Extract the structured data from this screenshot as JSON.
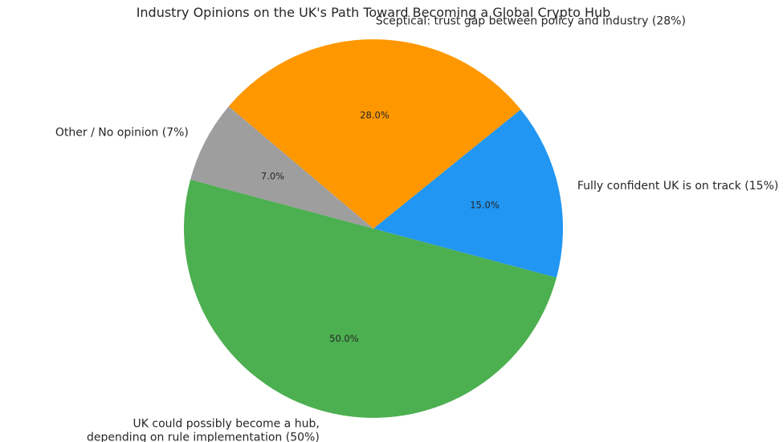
{
  "chart_data": {
    "type": "pie",
    "title": "Industry Opinions on the UK's Path Toward Becoming a Global Crypto Hub",
    "start_angle_deg": -15,
    "direction": "counterclockwise",
    "slices": [
      {
        "label": "Fully confident UK is on track (15%)",
        "value": 15,
        "pct_label": "15.0%",
        "color": "#2196F3",
        "label_anchor": "start"
      },
      {
        "label": "Sceptical: trust gap between policy and industry (28%)",
        "value": 28,
        "pct_label": "28.0%",
        "color": "#FF9800",
        "label_anchor": "start"
      },
      {
        "label": "Other / No opinion (7%)",
        "value": 7,
        "pct_label": "7.0%",
        "color": "#9E9E9E",
        "label_anchor": "end"
      },
      {
        "label_lines": [
          "UK could possibly become a hub,",
          "depending on rule implementation (50%)"
        ],
        "value": 50,
        "pct_label": "50.0%",
        "color": "#4CAF50",
        "label_anchor": "end"
      }
    ]
  }
}
